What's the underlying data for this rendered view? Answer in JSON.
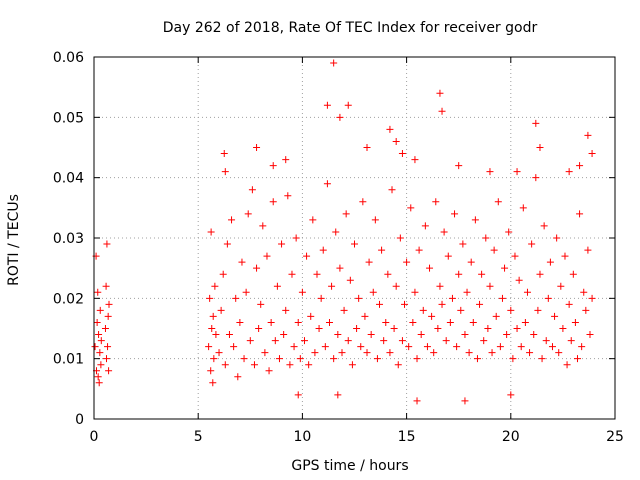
{
  "chart_data": {
    "type": "scatter",
    "title": "Day 262 of 2018, Rate Of TEC Index for receiver godr",
    "xlabel": "GPS time / hours",
    "ylabel": "ROTI / TECUs",
    "xlim": [
      0,
      25
    ],
    "ylim": [
      0,
      0.06
    ],
    "xticks": [
      0,
      5,
      10,
      15,
      20,
      25
    ],
    "xtick_labels": [
      "0",
      "5",
      "10",
      "15",
      "20",
      "25"
    ],
    "yticks": [
      0,
      0.01,
      0.02,
      0.03,
      0.04,
      0.05,
      0.06
    ],
    "ytick_labels": [
      "0",
      "0.01",
      "0.02",
      "0.03",
      "0.04",
      "0.05",
      "0.06"
    ],
    "grid": true,
    "marker": "plus",
    "color": "#ff0000",
    "series": [
      {
        "name": "ROTI",
        "x": [
          0.05,
          0.1,
          0.12,
          0.15,
          0.18,
          0.2,
          0.22,
          0.25,
          0.28,
          0.3,
          0.33,
          0.35,
          0.55,
          0.58,
          0.6,
          0.62,
          0.65,
          0.68,
          0.7,
          0.72,
          5.5,
          5.55,
          5.6,
          5.62,
          5.65,
          5.7,
          5.72,
          5.75,
          5.8,
          5.85,
          6.0,
          6.1,
          6.2,
          6.3,
          6.4,
          6.5,
          6.6,
          6.7,
          6.8,
          6.9,
          7.0,
          7.1,
          7.2,
          7.3,
          7.4,
          7.5,
          7.6,
          7.7,
          7.8,
          7.9,
          8.0,
          8.1,
          8.2,
          8.3,
          8.4,
          8.5,
          8.6,
          8.7,
          8.8,
          8.9,
          9.0,
          9.1,
          9.2,
          9.3,
          9.4,
          9.5,
          9.6,
          9.7,
          9.8,
          9.9,
          10.0,
          10.1,
          10.2,
          10.3,
          10.4,
          10.5,
          10.6,
          10.7,
          10.8,
          10.9,
          11.0,
          11.1,
          11.2,
          11.3,
          11.4,
          11.5,
          11.6,
          11.7,
          11.8,
          11.9,
          12.0,
          12.1,
          12.2,
          12.3,
          12.4,
          12.5,
          12.6,
          12.7,
          12.8,
          12.9,
          13.0,
          13.1,
          13.2,
          13.3,
          13.4,
          13.5,
          13.6,
          13.7,
          13.8,
          13.9,
          14.0,
          14.1,
          14.2,
          14.3,
          14.4,
          14.5,
          14.6,
          14.7,
          14.8,
          14.9,
          15.0,
          15.1,
          15.2,
          15.3,
          15.4,
          15.5,
          15.6,
          15.7,
          15.8,
          15.9,
          16.0,
          16.1,
          16.2,
          16.3,
          16.4,
          16.5,
          16.6,
          16.7,
          16.8,
          16.9,
          17.0,
          17.1,
          17.2,
          17.3,
          17.4,
          17.5,
          17.6,
          17.7,
          17.8,
          17.9,
          18.0,
          18.1,
          18.2,
          18.3,
          18.4,
          18.5,
          18.6,
          18.7,
          18.8,
          18.9,
          19.0,
          19.1,
          19.2,
          19.3,
          19.4,
          19.5,
          19.6,
          19.7,
          19.8,
          19.9,
          20.0,
          20.1,
          20.2,
          20.3,
          20.4,
          20.5,
          20.6,
          20.7,
          20.8,
          20.9,
          21.0,
          21.1,
          21.2,
          21.3,
          21.4,
          21.5,
          21.6,
          21.7,
          21.8,
          21.9,
          22.0,
          22.1,
          22.2,
          22.3,
          22.4,
          22.5,
          22.6,
          22.7,
          22.8,
          22.9,
          23.0,
          23.1,
          23.2,
          23.3,
          23.4,
          23.5,
          23.6,
          23.7,
          23.8,
          23.9,
          6.25,
          6.3,
          7.8,
          8.6,
          9.2,
          11.2,
          11.5,
          11.8,
          12.2,
          13.1,
          14.2,
          14.5,
          14.8,
          15.4,
          16.6,
          16.7,
          17.5,
          19.0,
          20.3,
          21.2,
          21.4,
          22.8,
          23.3,
          23.7,
          23.9,
          15.5,
          17.8,
          20.0,
          11.7,
          9.8
        ],
        "y": [
          0.012,
          0.027,
          0.008,
          0.016,
          0.021,
          0.007,
          0.014,
          0.006,
          0.011,
          0.018,
          0.009,
          0.013,
          0.015,
          0.022,
          0.01,
          0.029,
          0.012,
          0.017,
          0.008,
          0.019,
          0.012,
          0.02,
          0.008,
          0.031,
          0.015,
          0.006,
          0.017,
          0.01,
          0.022,
          0.014,
          0.011,
          0.018,
          0.024,
          0.009,
          0.029,
          0.014,
          0.033,
          0.012,
          0.02,
          0.007,
          0.016,
          0.026,
          0.01,
          0.021,
          0.034,
          0.013,
          0.038,
          0.009,
          0.025,
          0.015,
          0.019,
          0.032,
          0.011,
          0.027,
          0.008,
          0.016,
          0.036,
          0.013,
          0.022,
          0.01,
          0.029,
          0.014,
          0.018,
          0.037,
          0.009,
          0.024,
          0.012,
          0.03,
          0.016,
          0.01,
          0.021,
          0.013,
          0.027,
          0.009,
          0.017,
          0.033,
          0.011,
          0.024,
          0.015,
          0.02,
          0.028,
          0.012,
          0.039,
          0.016,
          0.022,
          0.01,
          0.031,
          0.014,
          0.025,
          0.011,
          0.018,
          0.034,
          0.013,
          0.023,
          0.009,
          0.029,
          0.015,
          0.02,
          0.012,
          0.036,
          0.017,
          0.011,
          0.026,
          0.014,
          0.021,
          0.033,
          0.01,
          0.019,
          0.028,
          0.013,
          0.016,
          0.024,
          0.011,
          0.038,
          0.015,
          0.022,
          0.009,
          0.03,
          0.013,
          0.019,
          0.026,
          0.012,
          0.035,
          0.016,
          0.021,
          0.01,
          0.028,
          0.014,
          0.018,
          0.032,
          0.012,
          0.025,
          0.017,
          0.011,
          0.036,
          0.015,
          0.022,
          0.019,
          0.031,
          0.013,
          0.027,
          0.016,
          0.02,
          0.034,
          0.012,
          0.024,
          0.018,
          0.029,
          0.014,
          0.021,
          0.011,
          0.026,
          0.016,
          0.033,
          0.01,
          0.019,
          0.024,
          0.013,
          0.03,
          0.015,
          0.022,
          0.011,
          0.028,
          0.017,
          0.036,
          0.012,
          0.02,
          0.025,
          0.014,
          0.031,
          0.018,
          0.01,
          0.027,
          0.015,
          0.023,
          0.012,
          0.035,
          0.016,
          0.021,
          0.011,
          0.029,
          0.014,
          0.04,
          0.018,
          0.024,
          0.01,
          0.032,
          0.013,
          0.02,
          0.026,
          0.012,
          0.017,
          0.03,
          0.011,
          0.022,
          0.015,
          0.027,
          0.009,
          0.019,
          0.013,
          0.024,
          0.016,
          0.01,
          0.034,
          0.012,
          0.021,
          0.018,
          0.028,
          0.014,
          0.02,
          0.044,
          0.041,
          0.045,
          0.042,
          0.043,
          0.052,
          0.059,
          0.05,
          0.052,
          0.045,
          0.048,
          0.046,
          0.044,
          0.043,
          0.054,
          0.051,
          0.042,
          0.041,
          0.041,
          0.049,
          0.045,
          0.041,
          0.042,
          0.047,
          0.044,
          0.003,
          0.003,
          0.004,
          0.004,
          0.004
        ]
      }
    ]
  }
}
